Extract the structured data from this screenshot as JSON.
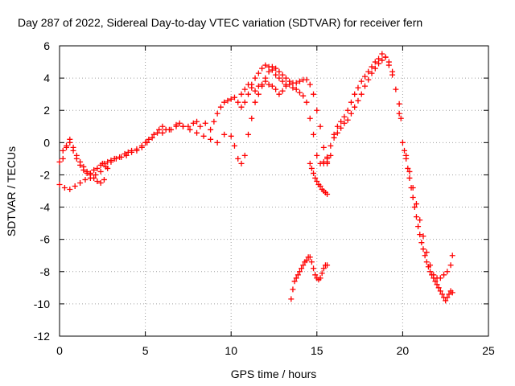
{
  "chart_data": {
    "type": "scatter",
    "title": "Day 287 of 2022, Sidereal Day-to-day VTEC variation (SDTVAR) for receiver fern",
    "xlabel": "GPS time / hours",
    "ylabel": "SDTVAR / TECUs",
    "xlim": [
      0,
      25
    ],
    "ylim": [
      -12,
      6
    ],
    "xticks": [
      0,
      5,
      10,
      15,
      20,
      25
    ],
    "yticks": [
      -12,
      -10,
      -8,
      -6,
      -4,
      -2,
      0,
      2,
      4,
      6
    ],
    "grid": true,
    "legend": "none",
    "marker": "plus",
    "marker_color": "#ff0000",
    "series": [
      {
        "x": [
          0.0,
          0.2,
          0.4,
          0.6,
          0.8,
          1.0,
          1.2,
          1.4,
          1.6,
          1.8,
          2.0,
          2.2,
          2.4,
          2.5,
          2.6,
          2.8,
          3.0,
          3.2,
          3.5,
          3.8,
          4.0,
          4.2,
          4.5,
          4.8,
          5.0,
          5.2,
          5.5,
          5.8,
          6.0,
          6.2,
          6.5,
          6.8,
          7.0,
          7.2,
          7.5,
          7.8,
          8.0,
          8.2,
          8.5,
          8.8,
          9.0,
          9.2,
          9.4,
          9.6,
          9.8,
          10.0,
          10.2,
          10.4,
          10.6,
          10.8,
          11.0,
          11.2,
          11.4,
          11.6,
          11.8,
          12.0,
          12.2,
          12.4,
          12.6,
          12.8,
          13.0,
          13.2,
          13.4,
          13.6,
          13.8,
          14.0,
          14.2,
          14.4,
          14.6,
          14.8,
          15.0,
          15.2,
          15.4,
          15.6
        ],
        "y": [
          -1.2,
          -1.0,
          -0.3,
          0.2,
          -0.5,
          -1.0,
          -1.4,
          -1.7,
          -1.9,
          -1.9,
          -1.7,
          -1.6,
          -1.4,
          -1.3,
          -1.3,
          -1.2,
          -1.1,
          -1.0,
          -0.9,
          -0.7,
          -0.6,
          -0.5,
          -0.4,
          -0.2,
          0.0,
          0.2,
          0.5,
          0.8,
          1.0,
          0.8,
          0.8,
          1.0,
          1.2,
          1.0,
          1.0,
          1.2,
          1.3,
          1.0,
          1.2,
          0.8,
          1.3,
          1.8,
          2.2,
          2.5,
          2.6,
          2.7,
          2.8,
          2.5,
          3.0,
          3.3,
          3.6,
          3.4,
          3.2,
          3.5,
          3.6,
          3.8,
          3.6,
          3.5,
          3.3,
          3.0,
          3.2,
          3.5,
          3.6,
          3.4,
          3.3,
          3.1,
          2.9,
          2.5,
          1.5,
          0.5,
          -0.8,
          -1.3,
          -1.2,
          -1.0
        ]
      },
      {
        "x": [
          0.0,
          0.3,
          0.6,
          0.9,
          1.2,
          1.5,
          1.8,
          2.1,
          2.4,
          2.7,
          3.0,
          3.3,
          3.6,
          3.9,
          4.2,
          4.5,
          4.8,
          5.1,
          5.4,
          5.7,
          6.0,
          6.4,
          6.8,
          7.2,
          7.6,
          8.0,
          8.4,
          8.8,
          9.2,
          9.6,
          10.0,
          10.2,
          10.4,
          10.6,
          10.8,
          11.0,
          11.2,
          11.4,
          11.6,
          11.8,
          12.0,
          12.2,
          12.4,
          12.6,
          12.8,
          13.0,
          13.2,
          13.4,
          13.6,
          13.8,
          14.0,
          14.2,
          14.4,
          14.6,
          14.8,
          15.0,
          15.2,
          15.4,
          15.6
        ],
        "y": [
          -2.6,
          -2.8,
          -2.9,
          -2.7,
          -2.5,
          -2.3,
          -2.2,
          -2.0,
          -1.8,
          -1.5,
          -1.2,
          -1.0,
          -0.9,
          -0.8,
          -0.6,
          -0.5,
          -0.3,
          0.0,
          0.3,
          0.6,
          0.6,
          0.8,
          1.1,
          1.0,
          0.8,
          0.6,
          0.4,
          0.2,
          0.0,
          0.5,
          0.4,
          -0.2,
          -1.0,
          -1.3,
          -0.8,
          0.5,
          1.5,
          2.5,
          3.0,
          3.5,
          4.0,
          4.4,
          4.7,
          4.6,
          4.4,
          4.2,
          4.0,
          3.8,
          3.7,
          3.7,
          3.8,
          3.9,
          3.9,
          3.6,
          3.0,
          2.0,
          1.0,
          -0.3,
          -1.3
        ]
      },
      {
        "x": [
          0.2,
          0.4,
          0.6,
          0.8,
          1.0,
          1.2,
          1.4,
          1.6,
          1.8,
          2.0,
          2.2,
          2.4,
          2.6,
          2.8
        ],
        "y": [
          -0.5,
          -0.2,
          0.0,
          -0.3,
          -0.8,
          -1.2,
          -1.5,
          -1.8,
          -2.0,
          -2.2,
          -2.4,
          -2.5,
          -2.3,
          -1.6
        ]
      },
      {
        "x": [
          10.6,
          10.8,
          11.0,
          11.2,
          11.4,
          11.6,
          11.8,
          12.0,
          12.2,
          12.4,
          12.6,
          12.8,
          13.0,
          13.2
        ],
        "y": [
          2.2,
          2.5,
          3.0,
          3.6,
          4.0,
          4.3,
          4.6,
          4.8,
          4.7,
          4.5,
          4.2,
          4.0,
          3.8,
          3.6
        ]
      },
      {
        "x": [
          13.5,
          13.6,
          13.7,
          13.8,
          13.9,
          14.0,
          14.1,
          14.2,
          14.3,
          14.4,
          14.5,
          14.6,
          14.7,
          14.8,
          14.9,
          15.0,
          15.1,
          15.2,
          15.3,
          15.4,
          15.5,
          15.6
        ],
        "y": [
          -9.7,
          -9.1,
          -8.6,
          -8.4,
          -8.2,
          -8.0,
          -7.8,
          -7.6,
          -7.4,
          -7.3,
          -7.1,
          -7.1,
          -7.4,
          -7.8,
          -8.2,
          -8.4,
          -8.5,
          -8.4,
          -8.1,
          -7.8,
          -7.6,
          -7.6
        ]
      },
      {
        "x": [
          14.6,
          14.7,
          14.8,
          14.9,
          15.0,
          15.1,
          15.2,
          15.3,
          15.4,
          15.5,
          15.6
        ],
        "y": [
          -1.3,
          -1.6,
          -1.9,
          -2.2,
          -2.4,
          -2.6,
          -2.7,
          -2.9,
          -3.0,
          -3.1,
          -3.2
        ]
      },
      {
        "x": [
          15.4,
          15.6,
          15.8,
          16.0,
          16.2,
          16.4,
          16.6,
          16.8,
          17.0,
          17.2,
          17.4,
          17.6,
          17.8,
          18.0,
          18.2,
          18.4,
          18.6,
          18.8,
          19.0,
          19.2,
          19.4
        ],
        "y": [
          -1.3,
          -1.2,
          -0.8,
          0.5,
          1.0,
          1.3,
          1.6,
          2.0,
          2.5,
          3.0,
          3.4,
          3.8,
          4.1,
          4.4,
          4.7,
          5.0,
          5.2,
          5.5,
          5.3,
          4.8,
          4.4
        ]
      },
      {
        "x": [
          15.6,
          15.8,
          16.0,
          16.2,
          16.4,
          16.6,
          16.8,
          17.0,
          17.2,
          17.4,
          17.6,
          17.8,
          18.0,
          18.2,
          18.4,
          18.6,
          18.8,
          19.0,
          19.2,
          19.4,
          19.6,
          19.8
        ],
        "y": [
          -0.9,
          -0.2,
          0.3,
          0.6,
          0.9,
          1.2,
          1.4,
          1.8,
          2.2,
          2.6,
          3.0,
          3.5,
          3.9,
          4.3,
          4.6,
          4.9,
          5.1,
          5.3,
          5.0,
          4.2,
          3.3,
          2.4
        ]
      },
      {
        "x": [
          19.8,
          19.9
        ],
        "y": [
          1.8,
          1.5
        ]
      },
      {
        "x": [
          20.0,
          20.1,
          20.2,
          20.3,
          20.4,
          20.5,
          20.6,
          20.7,
          20.8,
          20.9,
          21.0,
          21.1,
          21.2,
          21.3,
          21.4,
          21.5,
          21.6,
          21.7,
          21.8,
          21.9,
          22.0,
          22.1,
          22.2,
          22.3,
          22.4,
          22.5,
          22.6,
          22.7,
          22.8,
          22.9
        ],
        "y": [
          0.0,
          -0.5,
          -1.0,
          -1.6,
          -2.2,
          -2.8,
          -3.4,
          -4.0,
          -4.6,
          -5.2,
          -5.7,
          -6.2,
          -6.6,
          -7.0,
          -7.4,
          -7.7,
          -8.0,
          -8.2,
          -8.4,
          -8.6,
          -8.8,
          -9.0,
          -9.2,
          -9.4,
          -9.6,
          -9.8,
          -9.6,
          -9.4,
          -9.2,
          -9.3
        ]
      },
      {
        "x": [
          20.2,
          20.4,
          20.6,
          20.8,
          21.0,
          21.2,
          21.4,
          21.6,
          21.8,
          22.0,
          22.2,
          22.4,
          22.6,
          22.8,
          22.9
        ],
        "y": [
          -0.8,
          -1.8,
          -2.8,
          -3.8,
          -4.8,
          -5.8,
          -6.8,
          -7.6,
          -8.2,
          -8.4,
          -8.4,
          -8.2,
          -8.0,
          -7.6,
          -7.0
        ]
      }
    ]
  }
}
